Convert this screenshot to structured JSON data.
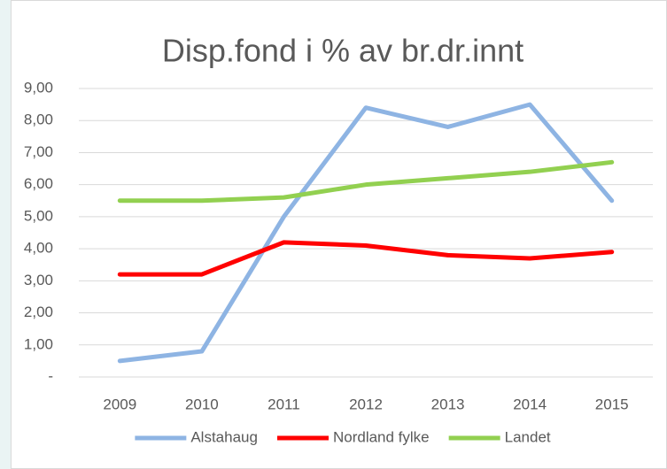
{
  "chart_data": {
    "type": "line",
    "title": "Disp.fond i % av br.dr.innt",
    "categories": [
      "2009",
      "2010",
      "2011",
      "2012",
      "2013",
      "2014",
      "2015"
    ],
    "series": [
      {
        "name": "Alstahaug",
        "color": "#8eb4e3",
        "values": [
          0.5,
          0.8,
          5.0,
          8.4,
          7.8,
          8.5,
          5.5
        ]
      },
      {
        "name": "Nordland fylke",
        "color": "#ff0000",
        "values": [
          3.2,
          3.2,
          4.2,
          4.1,
          3.8,
          3.7,
          3.9
        ]
      },
      {
        "name": "Landet",
        "color": "#92d050",
        "values": [
          5.5,
          5.5,
          5.6,
          6.0,
          6.2,
          6.4,
          6.7
        ]
      }
    ],
    "ylim": [
      0,
      9
    ],
    "yticks": [
      {
        "value": 0,
        "label": "-"
      },
      {
        "value": 1,
        "label": "1,00"
      },
      {
        "value": 2,
        "label": "2,00"
      },
      {
        "value": 3,
        "label": "3,00"
      },
      {
        "value": 4,
        "label": "4,00"
      },
      {
        "value": 5,
        "label": "5,00"
      },
      {
        "value": 6,
        "label": "6,00"
      },
      {
        "value": 7,
        "label": "7,00"
      },
      {
        "value": 8,
        "label": "8,00"
      },
      {
        "value": 9,
        "label": "9,00"
      }
    ],
    "grid": true,
    "legend": "bottom"
  }
}
